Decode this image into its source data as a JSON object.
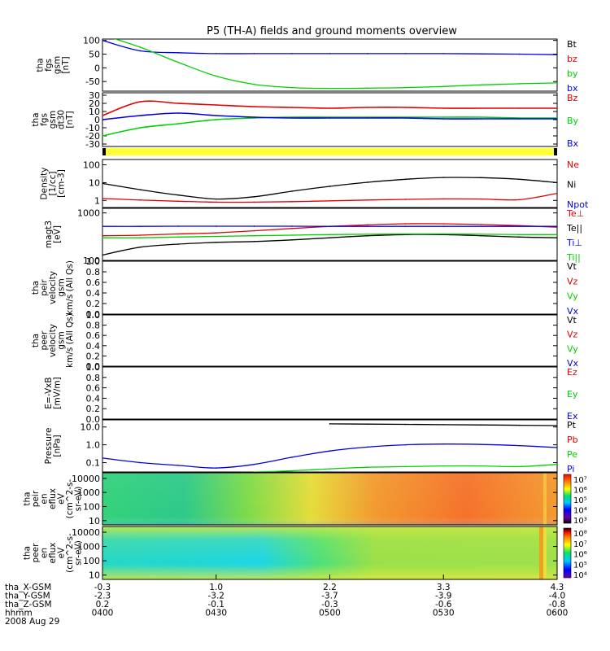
{
  "title": "P5 (TH-A) fields and ground moments overview",
  "colors": {
    "black": "#000000",
    "red": "#e00000",
    "green": "#00d000",
    "blue": "#0000e0",
    "yellow": "#ffff33"
  },
  "panels": [
    {
      "id": "fgs_gsm",
      "ylabel_lines": [
        "tha",
        "fgs",
        "gsm",
        "[nT]"
      ],
      "yticks": [
        {
          "v": 100,
          "t": "100"
        },
        {
          "v": 50,
          "t": "50"
        },
        {
          "v": 0,
          "t": "0"
        },
        {
          "v": -50,
          "t": "-50"
        }
      ],
      "ylim": [
        -85,
        105
      ],
      "ylog": false,
      "legend": [
        {
          "t": "Bt",
          "c": "black"
        },
        {
          "t": "bz",
          "c": "red"
        },
        {
          "t": "by",
          "c": "green"
        },
        {
          "t": "bx",
          "c": "blue"
        }
      ]
    },
    {
      "id": "fgs_dsl",
      "ylabel_lines": [
        "tha",
        "fgs",
        "gsm",
        "dt30",
        "[nT]"
      ],
      "yticks": [
        {
          "v": 30,
          "t": "30"
        },
        {
          "v": 20,
          "t": "20"
        },
        {
          "v": 10,
          "t": "10"
        },
        {
          "v": 0,
          "t": "0"
        },
        {
          "v": -10,
          "t": "-10"
        },
        {
          "v": -20,
          "t": "-20"
        },
        {
          "v": -30,
          "t": "-30"
        }
      ],
      "ylim": [
        -33,
        33
      ],
      "ylog": false,
      "legend": [
        {
          "t": "Bz",
          "c": "red"
        },
        {
          "t": "By",
          "c": "green"
        },
        {
          "t": "Bx",
          "c": "blue"
        }
      ]
    },
    {
      "id": "density",
      "ylabel_lines": [
        "Density",
        "[1/cc]",
        "[cm-3]"
      ],
      "yticks": [
        {
          "v": 100,
          "t": "100"
        },
        {
          "v": 10,
          "t": "10"
        },
        {
          "v": 1,
          "t": "1"
        }
      ],
      "ylim": [
        0.4,
        200
      ],
      "ylog": true,
      "legend": [
        {
          "t": "Ne",
          "c": "red"
        },
        {
          "t": "Ni",
          "c": "black"
        },
        {
          "t": "Npot",
          "c": "blue"
        }
      ]
    },
    {
      "id": "temp",
      "ylabel_lines": [
        "magt3",
        "[eV]"
      ],
      "yticks": [
        {
          "v": 1000,
          "t": "1000"
        },
        {
          "v": 100,
          "t": "100"
        }
      ],
      "ylim": [
        100,
        1250
      ],
      "ylog": true,
      "legend": [
        {
          "t": "Te⊥",
          "c": "red"
        },
        {
          "t": "Te||",
          "c": "black"
        },
        {
          "t": "Ti⊥",
          "c": "blue"
        },
        {
          "t": "Ti||",
          "c": "green"
        }
      ]
    },
    {
      "id": "vel_i",
      "ylabel_lines": [
        "tha",
        "peir",
        "velocity",
        "gsm",
        "km/s (All Qs)"
      ],
      "yticks": [
        {
          "v": 1.0,
          "t": "1.0"
        },
        {
          "v": 0.8,
          "t": "0.8"
        },
        {
          "v": 0.6,
          "t": "0.6"
        },
        {
          "v": 0.4,
          "t": "0.4"
        },
        {
          "v": 0.2,
          "t": "0.2"
        },
        {
          "v": 0.0,
          "t": "0.0"
        }
      ],
      "ylim": [
        0,
        1
      ],
      "ylog": false,
      "legend": [
        {
          "t": "Vt",
          "c": "black"
        },
        {
          "t": "Vz",
          "c": "red"
        },
        {
          "t": "Vy",
          "c": "green"
        },
        {
          "t": "Vx",
          "c": "blue"
        }
      ]
    },
    {
      "id": "vel_e",
      "ylabel_lines": [
        "tha",
        "peer",
        "velocity",
        "gsm",
        "km/s (All Qs)"
      ],
      "yticks": [
        {
          "v": 1.0,
          "t": "1.0"
        },
        {
          "v": 0.8,
          "t": "0.8"
        },
        {
          "v": 0.6,
          "t": "0.6"
        },
        {
          "v": 0.4,
          "t": "0.4"
        },
        {
          "v": 0.2,
          "t": "0.2"
        },
        {
          "v": 0.0,
          "t": "0.0"
        }
      ],
      "ylim": [
        0,
        1
      ],
      "ylog": false,
      "legend": [
        {
          "t": "Vt",
          "c": "black"
        },
        {
          "t": "Vz",
          "c": "red"
        },
        {
          "t": "Vy",
          "c": "green"
        },
        {
          "t": "Vx",
          "c": "blue"
        }
      ]
    },
    {
      "id": "efield",
      "ylabel_lines": [
        "E=-VxB",
        "[mV/m]"
      ],
      "yticks": [
        {
          "v": 1.0,
          "t": "1.0"
        },
        {
          "v": 0.8,
          "t": "0.8"
        },
        {
          "v": 0.6,
          "t": "0.6"
        },
        {
          "v": 0.4,
          "t": "0.4"
        },
        {
          "v": 0.2,
          "t": "0.2"
        },
        {
          "v": 0.0,
          "t": "0.0"
        }
      ],
      "ylim": [
        0,
        1
      ],
      "ylog": false,
      "legend": [
        {
          "t": "Ez",
          "c": "red"
        },
        {
          "t": "Ey",
          "c": "green"
        },
        {
          "t": "Ex",
          "c": "blue"
        }
      ]
    },
    {
      "id": "pressure",
      "ylabel_lines": [
        "Pressure",
        "[nPa]"
      ],
      "yticks": [
        {
          "v": 10,
          "t": "10.0"
        },
        {
          "v": 1,
          "t": "1.0"
        },
        {
          "v": 0.1,
          "t": "0.1"
        }
      ],
      "ylim": [
        0.03,
        25
      ],
      "ylog": true,
      "legend": [
        {
          "t": "Pt",
          "c": "black"
        },
        {
          "t": "Pb",
          "c": "red"
        },
        {
          "t": "Pe",
          "c": "green"
        },
        {
          "t": "Pi",
          "c": "blue"
        }
      ]
    },
    {
      "id": "spec_i",
      "ylabel_lines": [
        "tha",
        "peir",
        "en",
        "eflux",
        "eV",
        "(cm^2-s-",
        "sr-eV)"
      ],
      "yticks": [
        {
          "v": 10000,
          "t": "10000"
        },
        {
          "v": 1000,
          "t": "1000"
        },
        {
          "v": 100,
          "t": "100"
        },
        {
          "v": 10,
          "t": "10"
        }
      ],
      "ylim": [
        5,
        25000
      ],
      "ylog": true,
      "colorbar_ticks": [
        "10⁷",
        "10⁶",
        "10⁵",
        "10⁴",
        "10³"
      ]
    },
    {
      "id": "spec_e",
      "ylabel_lines": [
        "tha",
        "peer",
        "en",
        "eflux",
        "eV",
        "(cm^2-s-",
        "sr-eV)"
      ],
      "yticks": [
        {
          "v": 10000,
          "t": "10000"
        },
        {
          "v": 1000,
          "t": "1000"
        },
        {
          "v": 100,
          "t": "100"
        },
        {
          "v": 10,
          "t": "10"
        }
      ],
      "ylim": [
        5,
        25000
      ],
      "ylog": true,
      "colorbar_ticks": [
        "10⁸",
        "10⁷",
        "10⁶",
        "10⁵",
        "10⁴"
      ]
    }
  ],
  "xaxis": {
    "rows": [
      {
        "label": "tha_X-GSM",
        "values": [
          "-0.3",
          "1.0",
          "2.2",
          "3.3",
          "4.3"
        ]
      },
      {
        "label": "tha_Y-GSM",
        "values": [
          "-2.3",
          "-3.2",
          "-3.7",
          "-3.9",
          "-4.0"
        ]
      },
      {
        "label": "tha_Z-GSM",
        "values": [
          "0.2",
          "-0.1",
          "-0.3",
          "-0.6",
          "-0.8"
        ]
      },
      {
        "label": "hhmm",
        "values": [
          "0400",
          "0430",
          "0500",
          "0530",
          "0600"
        ]
      }
    ],
    "date": "2008 Aug 29"
  },
  "chart_data": {
    "type": "line",
    "title": "P5 (TH-A) fields and ground moments overview",
    "x": [
      "0400",
      "0410",
      "0420",
      "0430",
      "0440",
      "0450",
      "0500",
      "0510",
      "0520",
      "0530",
      "0540",
      "0550",
      "0600"
    ],
    "panels": [
      {
        "ylabel": "tha fgs gsm [nT]",
        "ylim": [
          -85,
          105
        ],
        "series": [
          {
            "name": "bx",
            "values": [
              100,
              62,
              55,
              52,
              52,
              52,
              52,
              52,
              52,
              52,
              51,
              50,
              48
            ]
          },
          {
            "name": "by",
            "values": [
              120,
              75,
              20,
              -30,
              -60,
              -72,
              -75,
              -74,
              -72,
              -68,
              -62,
              -58,
              -55
            ]
          }
        ]
      },
      {
        "ylabel": "tha fgs gsm dt30 [nT]",
        "ylim": [
          -33,
          33
        ],
        "series": [
          {
            "name": "Bz",
            "values": [
              5,
              22,
              20,
              18,
              16,
              15,
              14,
              15,
              15,
              14,
              14,
              14,
              14
            ]
          },
          {
            "name": "By",
            "values": [
              -20,
              -10,
              -5,
              0,
              2,
              3,
              3,
              3,
              3,
              3,
              3,
              2,
              2
            ]
          },
          {
            "name": "Bx",
            "values": [
              0,
              5,
              8,
              5,
              3,
              2,
              2,
              2,
              2,
              1,
              1,
              1,
              1
            ]
          }
        ]
      },
      {
        "ylabel": "Density [1/cc] [cm-3]",
        "ylim": [
          0.4,
          200
        ],
        "ylog": true,
        "series": [
          {
            "name": "Ni",
            "values": [
              9,
              4,
              2,
              1.2,
              1.6,
              3.3,
              6.2,
              10.5,
              15.5,
              19.5,
              19,
              15.5,
              10
            ]
          },
          {
            "name": "Ne",
            "values": [
              1.3,
              1.05,
              0.9,
              0.8,
              0.8,
              0.85,
              0.95,
              1.05,
              1.15,
              1.22,
              1.2,
              1.1,
              2.5
            ]
          }
        ]
      },
      {
        "ylabel": "magt3 [eV]",
        "ylim": [
          100,
          1250
        ],
        "ylog": true,
        "series": [
          {
            "name": "Te⊥",
            "values": [
              330,
              340,
              360,
              380,
              420,
              470,
              520,
              560,
              590,
              590,
              570,
              540,
              500
            ]
          },
          {
            "name": "Te||",
            "values": [
              130,
              190,
              220,
              240,
              250,
              270,
              300,
              330,
              350,
              350,
              330,
              310,
              300
            ]
          },
          {
            "name": "Ti⊥",
            "values": [
              520,
              520,
              525,
              525,
              525,
              525,
              520,
              520,
              520,
              520,
              520,
              520,
              520
            ]
          },
          {
            "name": "Ti||",
            "values": [
              300,
              300,
              310,
              320,
              330,
              340,
              350,
              355,
              360,
              360,
              355,
              350,
              350
            ]
          }
        ]
      },
      {
        "ylabel": "Pressure [nPa]",
        "ylim": [
          0.03,
          25
        ],
        "ylog": true,
        "series": [
          {
            "name": "Pt",
            "values": [
              null,
              null,
              null,
              null,
              null,
              null,
              15,
              14.5,
              14,
              13.5,
              13,
              12.5,
              12
            ]
          },
          {
            "name": "Pi",
            "values": [
              0.18,
              0.1,
              0.07,
              0.05,
              0.08,
              0.2,
              0.45,
              0.75,
              1.0,
              1.1,
              1.05,
              0.9,
              0.7
            ]
          },
          {
            "name": "Pe",
            "values": [
              null,
              null,
              null,
              null,
              0.03,
              0.035,
              0.045,
              0.055,
              0.06,
              0.065,
              0.065,
              0.06,
              0.08
            ]
          }
        ]
      }
    ]
  }
}
